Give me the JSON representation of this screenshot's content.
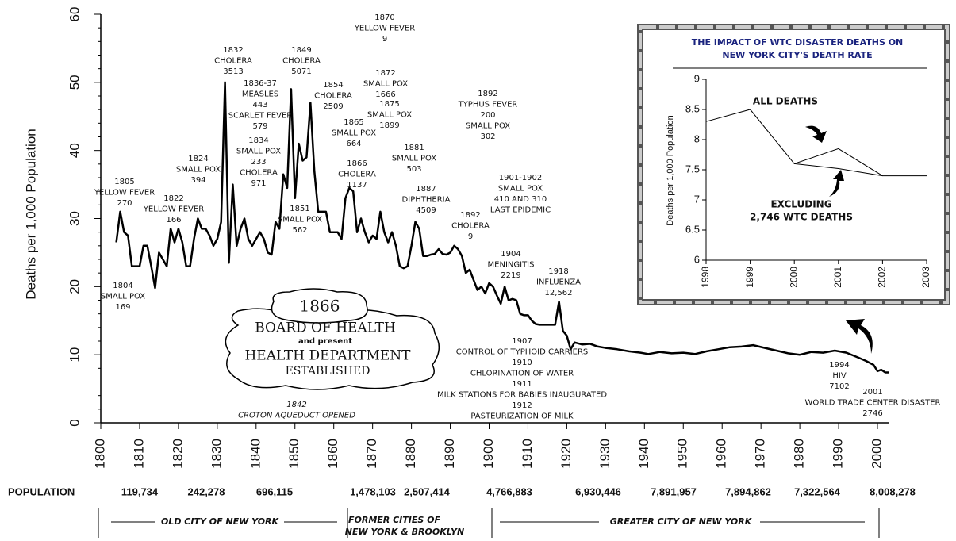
{
  "chart_data": [
    {
      "type": "line",
      "y_label": "Deaths per 1,000 Population",
      "color": "#000000",
      "x": [
        1804,
        1805,
        1806,
        1807,
        1808,
        1809,
        1810,
        1811,
        1812,
        1813,
        1814,
        1815,
        1816,
        1817,
        1818,
        1819,
        1820,
        1821,
        1822,
        1823,
        1824,
        1825,
        1826,
        1827,
        1828,
        1829,
        1830,
        1831,
        1832,
        1833,
        1834,
        1835,
        1836,
        1837,
        1838,
        1839,
        1840,
        1841,
        1842,
        1843,
        1844,
        1845,
        1846,
        1847,
        1848,
        1849,
        1850,
        1851,
        1852,
        1853,
        1854,
        1855,
        1856,
        1857,
        1858,
        1859,
        1860,
        1861,
        1862,
        1863,
        1864,
        1865,
        1866,
        1867,
        1868,
        1869,
        1870,
        1871,
        1872,
        1873,
        1874,
        1875,
        1876,
        1877,
        1878,
        1879,
        1880,
        1881,
        1882,
        1883,
        1884,
        1885,
        1886,
        1887,
        1888,
        1889,
        1890,
        1891,
        1892,
        1893,
        1894,
        1895,
        1896,
        1897,
        1898,
        1899,
        1900,
        1901,
        1902,
        1903,
        1904,
        1905,
        1906,
        1907,
        1908,
        1909,
        1910,
        1911,
        1912,
        1913,
        1914,
        1915,
        1916,
        1917,
        1918,
        1919,
        1920,
        1921,
        1922,
        1924,
        1926,
        1928,
        1930,
        1933,
        1936,
        1939,
        1941,
        1944,
        1947,
        1950,
        1953,
        1956,
        1959,
        1962,
        1965,
        1968,
        1971,
        1974,
        1977,
        1980,
        1983,
        1986,
        1989,
        1992,
        1995,
        1997,
        1999,
        2000,
        2001,
        2002,
        2003
      ],
      "values": [
        26.5,
        31,
        28,
        27.5,
        23,
        23,
        23,
        26,
        26,
        23,
        19.8,
        25,
        24,
        23,
        28.5,
        26.5,
        28.5,
        26.5,
        23,
        23,
        27,
        30,
        28.5,
        28.5,
        27.5,
        26,
        27,
        29.5,
        50,
        23.5,
        35,
        26,
        28.5,
        30,
        27,
        26,
        27,
        28,
        27,
        25,
        24.7,
        29.5,
        28.5,
        36.5,
        34.5,
        49,
        33,
        41,
        38.5,
        39,
        47,
        37,
        31,
        31,
        31,
        28,
        28,
        28,
        27,
        33,
        34.5,
        34,
        28,
        30,
        28,
        26.5,
        27.5,
        27,
        31,
        28,
        26.5,
        28,
        26,
        23,
        22.7,
        23,
        26,
        29.5,
        28.5,
        24.5,
        24.5,
        24.7,
        24.8,
        25.5,
        24.8,
        24.7,
        25,
        26,
        25.5,
        24.5,
        22,
        22.5,
        21,
        19.5,
        20,
        19,
        20.5,
        20,
        18.7,
        17.5,
        20,
        18,
        18.2,
        18,
        16,
        15.8,
        15.8,
        15,
        14.5,
        14.4,
        14.4,
        14.4,
        14.4,
        14.4,
        17.8,
        13.5,
        12.8,
        10.8,
        11.8,
        11.5,
        11.6,
        11.2,
        11,
        10.8,
        10.5,
        10.3,
        10.1,
        10.4,
        10.2,
        10.3,
        10.1,
        10.5,
        10.8,
        11.1,
        11.2,
        11.4,
        11,
        10.6,
        10.2,
        10,
        10.4,
        10.3,
        10.6,
        10.3,
        9.6,
        9.1,
        8.5,
        7.6,
        7.8,
        7.4,
        7.4
      ],
      "xlim": [
        1800,
        2003
      ],
      "xticks": [
        1800,
        1810,
        1820,
        1830,
        1840,
        1850,
        1860,
        1870,
        1880,
        1890,
        1900,
        1910,
        1920,
        1930,
        1940,
        1950,
        1960,
        1970,
        1980,
        1990,
        2000
      ],
      "ylim": [
        0,
        60
      ],
      "yticks": [
        0,
        10,
        20,
        30,
        40,
        50,
        60
      ]
    },
    {
      "type": "line",
      "title": [
        "THE IMPACT OF WTC DISASTER DEATHS ON",
        "NEW YORK CITY'S DEATH RATE"
      ],
      "y_label": "Deaths per 1,000 Population",
      "x": [
        1998,
        1999,
        2000,
        2001,
        2002,
        2003
      ],
      "series": [
        {
          "name": "ALL DEATHS",
          "color": "#000000",
          "values": [
            8.3,
            8.5,
            7.6,
            7.85,
            7.4,
            7.4
          ]
        },
        {
          "name": "EXCLUDING 2,746 WTC DEATHS",
          "color": "#000000",
          "values": [
            null,
            null,
            7.6,
            7.52,
            7.4,
            null
          ]
        }
      ],
      "labels": [
        "ALL DEATHS",
        "EXCLUDING",
        "2,746 WTC DEATHS"
      ],
      "xlim": [
        1998,
        2003
      ],
      "xticks": [
        1998,
        1999,
        2000,
        2001,
        2002,
        2003
      ],
      "ylim": [
        6,
        9
      ],
      "yticks": [
        6,
        6.5,
        7,
        7.5,
        8,
        8.5,
        9
      ]
    }
  ],
  "annotations": [
    [
      "1805",
      "YELLOW FEVER",
      "270"
    ],
    [
      "1804",
      "SMALL POX",
      "169"
    ],
    [
      "1822",
      "YELLOW FEVER",
      "166"
    ],
    [
      "1824",
      "SMALL POX",
      "394"
    ],
    [
      "1832",
      "CHOLERA",
      "3513"
    ],
    [
      "1836-37",
      "MEASLES",
      "443",
      "SCARLET FEVER",
      "579"
    ],
    [
      "1834",
      "SMALL POX",
      "233",
      "CHOLERA",
      "971"
    ],
    [
      "1849",
      "CHOLERA",
      "5071"
    ],
    [
      "1851",
      "SMALL POX",
      "562"
    ],
    [
      "1854",
      "CHOLERA",
      "2509"
    ],
    [
      "1865",
      "SMALL POX",
      "664"
    ],
    [
      "1866",
      "CHOLERA",
      "1137"
    ],
    [
      "1870",
      "YELLOW FEVER",
      "9"
    ],
    [
      "1872",
      "SMALL POX",
      "1666"
    ],
    [
      "1875",
      "SMALL POX",
      "1899"
    ],
    [
      "1881",
      "SMALL POX",
      "503"
    ],
    [
      "1887",
      "DIPHTHERIA",
      "4509"
    ],
    [
      "1892",
      "TYPHUS FEVER",
      "200",
      "SMALL POX",
      "302"
    ],
    [
      "1901-1902",
      "SMALL POX",
      "410 AND 310",
      "LAST EPIDEMIC"
    ],
    [
      "1892",
      "CHOLERA",
      "9"
    ],
    [
      "1904",
      "MENINGITIS",
      "2219"
    ],
    [
      "1918",
      "INFLUENZA",
      "12,562"
    ],
    [
      "1907",
      "CONTROL OF TYPHOID CARRIERS",
      "1910",
      "CHLORINATION OF WATER",
      "1911",
      "MILK STATIONS FOR BABIES INAUGURATED",
      "1912",
      "PASTEURIZATION OF MILK"
    ],
    [
      "1994",
      "HIV",
      "7102"
    ],
    [
      "2001",
      "WORLD TRADE CENTER DISASTER",
      "2746"
    ],
    [
      "1842",
      "CROTON AQUEDUCT OPENED"
    ]
  ],
  "health_box": [
    "1866",
    "BOARD OF HEALTH",
    "and present",
    "HEALTH DEPARTMENT",
    "ESTABLISHED"
  ],
  "population": {
    "label": "POPULATION",
    "values": [
      "119,734",
      "242,278",
      "696,115",
      "1,478,103",
      "2,507,414",
      "4,766,883",
      "6,930,446",
      "7,891,957",
      "7,894,862",
      "7,322,564",
      "8,008,278"
    ]
  },
  "eras": [
    "OLD CITY OF NEW YORK",
    "FORMER CITIES OF",
    "NEW YORK & BROOKLYN",
    "GREATER CITY OF NEW YORK"
  ]
}
